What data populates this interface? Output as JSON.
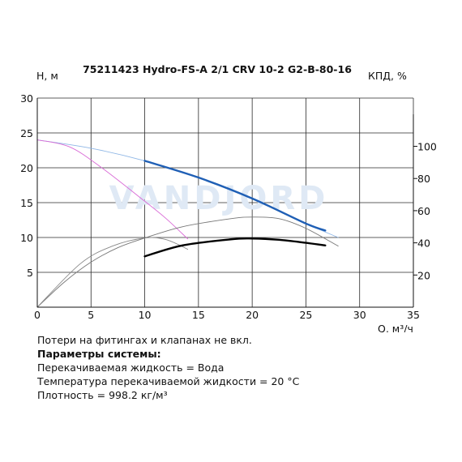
{
  "chart_data": {
    "type": "line",
    "title": "75211423 Hydro-FS-A 2/1 CRV 10-2 G2-B-80-16",
    "ylabel": "H, м",
    "y2label": "КПД, %",
    "xlabel": "Q, м³/ч",
    "xlim": [
      0,
      35
    ],
    "ylim": [
      0,
      30
    ],
    "y2lim": [
      0,
      130
    ],
    "x_ticks": [
      "0",
      "5",
      "10",
      "15",
      "20",
      "25",
      "30",
      "35"
    ],
    "y_ticks": [
      "5",
      "10",
      "15",
      "20",
      "25",
      "30"
    ],
    "y2_ticks": [
      "20",
      "40",
      "60",
      "80",
      "100"
    ],
    "watermark": "VANDJORD",
    "series": [
      {
        "id": "head-max",
        "color": "#8fb7e6",
        "axis": "left",
        "x": [
          0,
          5,
          10,
          15,
          20,
          25,
          28
        ],
        "y": [
          24.0,
          22.8,
          21.0,
          18.6,
          15.6,
          12.0,
          10.0
        ]
      },
      {
        "id": "head-system",
        "color": "#1f5fb5",
        "axis": "left",
        "x": [
          10,
          15,
          20,
          25,
          26.8
        ],
        "y": [
          21.0,
          18.6,
          15.6,
          12.0,
          11.0
        ]
      },
      {
        "id": "head-min",
        "color": "#d96bd6",
        "axis": "left",
        "x": [
          0,
          3,
          6,
          10,
          12,
          14
        ],
        "y": [
          24.0,
          23.0,
          20.0,
          15.2,
          12.7,
          9.8
        ]
      },
      {
        "id": "eff-max",
        "color": "#777777",
        "axis": "right",
        "x": [
          0,
          2.5,
          5,
          7.5,
          10,
          13.5,
          18,
          20,
          22.5,
          25,
          28
        ],
        "y": [
          0,
          15.5,
          28,
          37,
          43,
          50,
          55,
          56,
          55,
          49,
          38
        ]
      },
      {
        "id": "eff-min",
        "color": "#888888",
        "axis": "right",
        "x": [
          0,
          4,
          7,
          10,
          12,
          14
        ],
        "y": [
          0,
          27,
          38,
          43,
          42,
          36
        ]
      },
      {
        "id": "eff-system",
        "color": "#000000",
        "axis": "right",
        "x": [
          10,
          13.5,
          18,
          20,
          22.5,
          25,
          26.8
        ],
        "y": [
          31.6,
          38.4,
          42.2,
          42.7,
          41.9,
          40,
          38.4
        ]
      }
    ]
  },
  "notes": {
    "line1": "Потери на фитингах и клапанах не вкл.",
    "header": "Параметры системы:",
    "line3": "Перекачиваемая жидкость = Вода",
    "line4": "Температура перекачиваемой жидкости = 20 °C",
    "line5": "Плотность = 998.2 кг/м³"
  }
}
